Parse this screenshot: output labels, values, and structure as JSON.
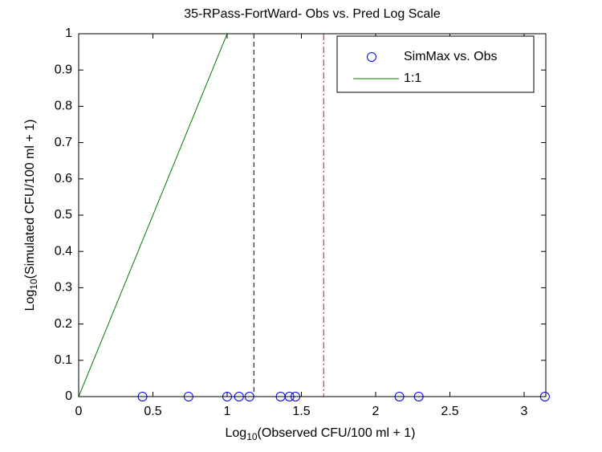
{
  "chart_data": {
    "type": "scatter",
    "title": "35-RPass-FortWard- Obs vs. Pred Log Scale",
    "xlabel": {
      "base": "Log",
      "sub": "10",
      "rest": "(Observed CFU/100 ml + 1)"
    },
    "ylabel": {
      "base": "Log",
      "sub": "10",
      "rest": "(Simulated CFU/100 ml + 1)"
    },
    "xlim": [
      0,
      3.146
    ],
    "ylim": [
      0,
      1
    ],
    "xticks": [
      0,
      0.5,
      1,
      1.5,
      2,
      2.5,
      3
    ],
    "yticks": [
      0,
      0.1,
      0.2,
      0.3,
      0.4,
      0.5,
      0.6,
      0.7,
      0.8,
      0.9,
      1
    ],
    "series": [
      {
        "name": "SimMax vs. Obs",
        "style": "marker",
        "color": "#0000ff",
        "x": [
          0.43,
          0.74,
          1.0,
          1.08,
          1.15,
          1.36,
          1.42,
          1.46,
          2.16,
          2.29,
          3.14
        ],
        "values": [
          0,
          0,
          0,
          0,
          0,
          0,
          0,
          0,
          0,
          0,
          0
        ]
      },
      {
        "name": "1:1",
        "style": "line",
        "color": "#008000",
        "x": [
          0,
          1
        ],
        "values": [
          0,
          1
        ]
      }
    ],
    "vlines": [
      {
        "x": 1.18,
        "color": "#000000",
        "dash": "6,4"
      },
      {
        "x": 1.65,
        "color": "#ff0000",
        "dash": "8,3,2,3"
      }
    ],
    "legend": "upper-right"
  }
}
